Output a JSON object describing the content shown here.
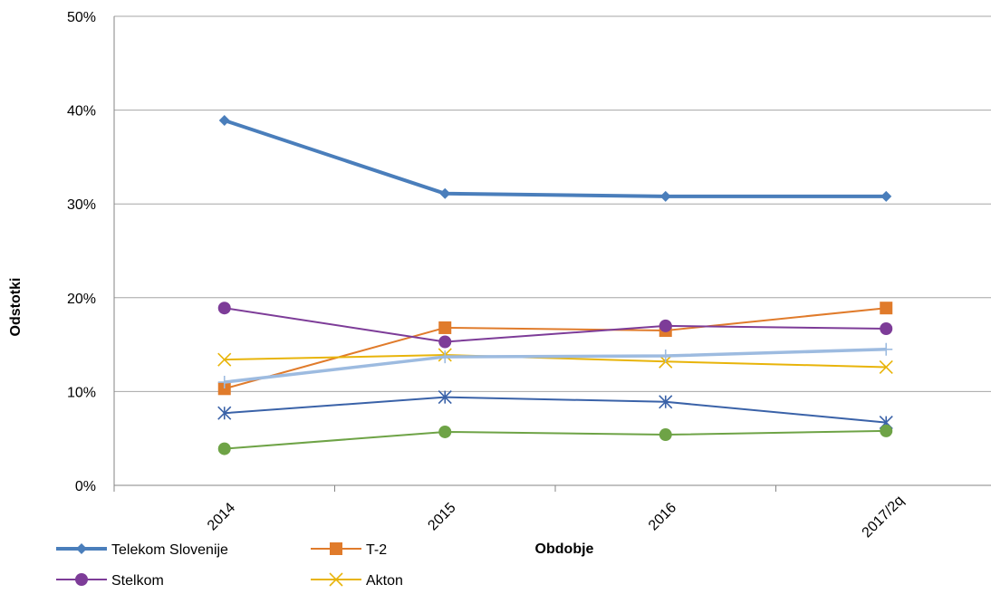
{
  "chart_data": {
    "type": "line",
    "xlabel": "Obdobje",
    "ylabel": "Odstotki",
    "categories": [
      "2014",
      "2015",
      "2016",
      "2017/2q"
    ],
    "ylim": [
      0,
      50
    ],
    "yticks": [
      "0%",
      "10%",
      "20%",
      "30%",
      "40%",
      "50%"
    ],
    "grid": true,
    "legend_position": "bottom-left",
    "series": [
      {
        "name": "Telekom Slovenije",
        "values": [
          38.9,
          31.1,
          30.8,
          30.8
        ],
        "color": "#4a7ebb",
        "marker": "diamond",
        "in_legend": true
      },
      {
        "name": "T-2",
        "values": [
          10.3,
          16.8,
          16.5,
          18.9
        ],
        "color": "#e07b2b",
        "marker": "square",
        "in_legend": true
      },
      {
        "name": "Stelkom",
        "values": [
          18.9,
          15.3,
          17.0,
          16.7
        ],
        "color": "#7d3c98",
        "marker": "circle",
        "in_legend": true
      },
      {
        "name": "Akton",
        "values": [
          13.4,
          13.9,
          13.2,
          12.6
        ],
        "color": "#e8b40a",
        "marker": "x",
        "in_legend": true
      },
      {
        "name": "",
        "values": [
          11.0,
          13.7,
          13.8,
          14.5
        ],
        "color": "#9dbbe0",
        "marker": "plus",
        "in_legend": false
      },
      {
        "name": "",
        "values": [
          7.7,
          9.4,
          8.9,
          6.7
        ],
        "color": "#3a62a8",
        "marker": "star",
        "in_legend": false
      },
      {
        "name": "",
        "values": [
          3.9,
          5.7,
          5.4,
          5.8
        ],
        "color": "#6ea346",
        "marker": "circle",
        "in_legend": false
      }
    ]
  }
}
